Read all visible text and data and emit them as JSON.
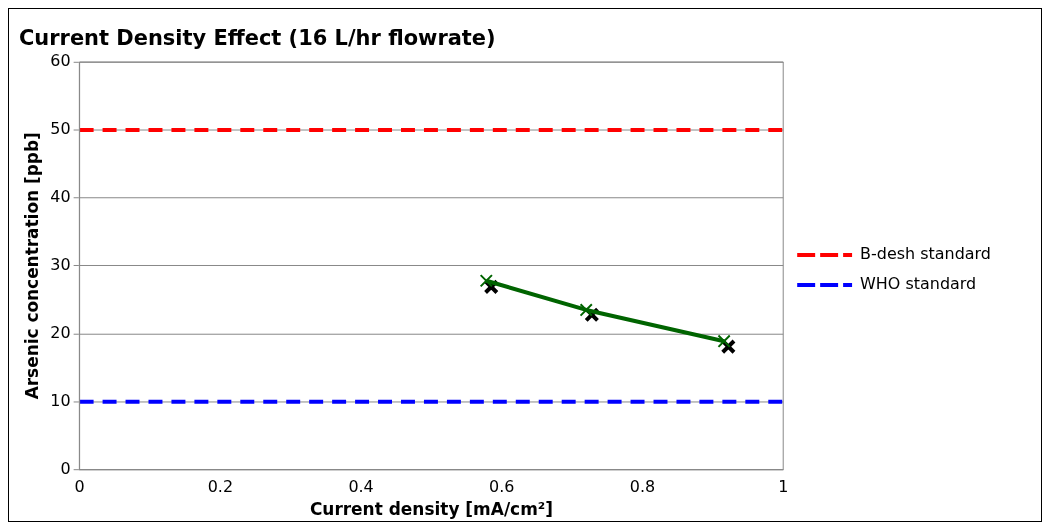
{
  "chart_data": {
    "type": "line",
    "title": "Current Density Effect (16 L/hr flowrate)",
    "xlabel": "Current density [mA/cm²]",
    "ylabel": "Arsenic concentration [ppb]",
    "xlim": [
      0,
      1
    ],
    "xticks": [
      0,
      0.2,
      0.4,
      0.6,
      0.8,
      1
    ],
    "ylim": [
      0,
      60
    ],
    "yticks": [
      0,
      10,
      20,
      30,
      40,
      50,
      60
    ],
    "grid": "y",
    "legend": "right",
    "series": [
      {
        "type": "line",
        "color": "#006400",
        "marker": "cross",
        "x": [
          0.578,
          0.72,
          0.916
        ],
        "values": [
          27.8,
          23.5,
          18.9
        ]
      },
      {
        "type": "scatter",
        "color": "#000000",
        "marker": "cross",
        "x": [
          0.585,
          0.728,
          0.922
        ],
        "values": [
          26.9,
          22.8,
          18.1
        ]
      }
    ],
    "ref_lines": [
      {
        "axis": "y",
        "value": 50,
        "label": "B-desh standard",
        "color": "#ff0000",
        "line_style": "dashed"
      },
      {
        "axis": "y",
        "value": 10,
        "label": "WHO standard",
        "color": "#0000ff",
        "line_style": "dashed"
      }
    ]
  }
}
